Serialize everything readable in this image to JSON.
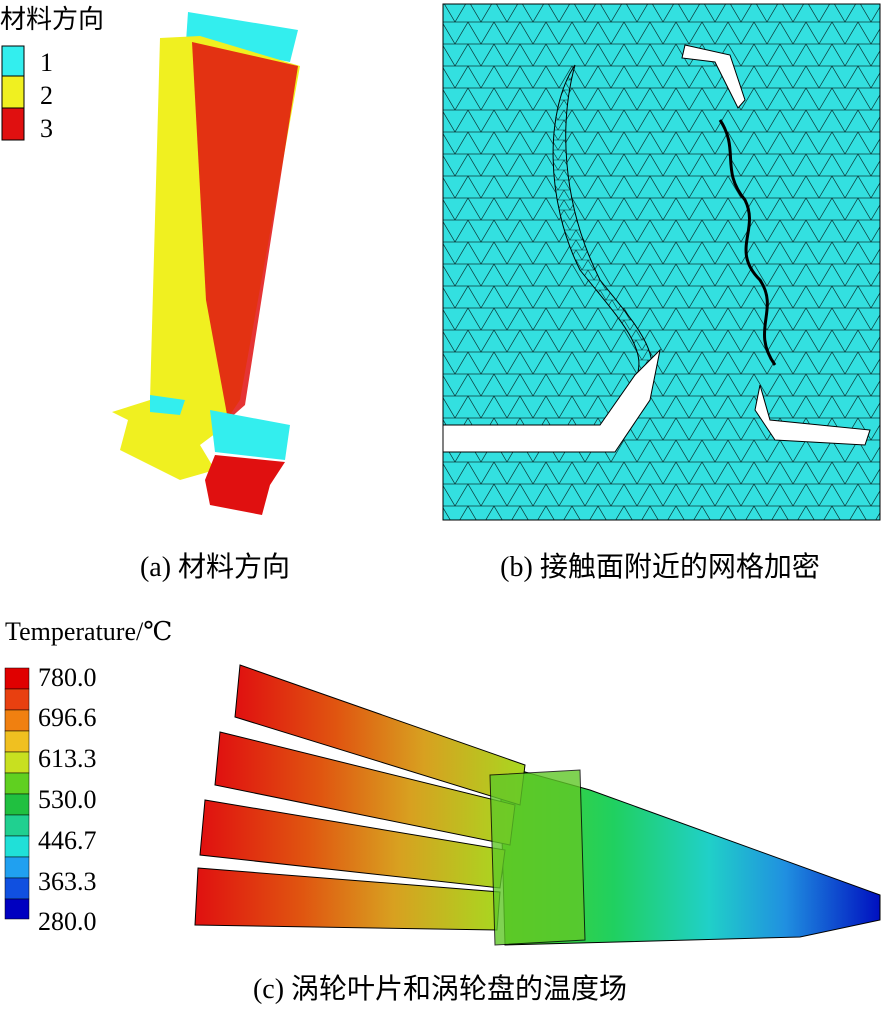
{
  "panel_a": {
    "legend_title": "材料方向",
    "legend": [
      "1",
      "2",
      "3"
    ],
    "caption": "(a) 材料方向"
  },
  "panel_b": {
    "caption": "(b) 接触面附近的网格加密"
  },
  "panel_c": {
    "legend_title": "Temperature/℃",
    "legend": [
      "780.0",
      "696.6",
      "613.3",
      "530.0",
      "446.7",
      "363.3",
      "280.0"
    ],
    "caption": "(c) 涡轮叶片和涡轮盘的温度场"
  }
}
